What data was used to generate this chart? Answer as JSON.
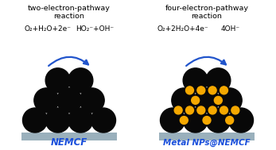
{
  "bg_color": "#ffffff",
  "left_title_line1": "two-electron-pathway",
  "left_title_line2": "reaction",
  "right_title_line1": "four-electron-pathway",
  "right_title_line2": "reaction",
  "left_eq_left": "O₂+H₂O+2e⁻",
  "left_eq_right": "HO₂⁻+OH⁻",
  "right_eq_left": "O₂+2H₂O+4e⁻",
  "right_eq_right": "4OH⁻",
  "left_label": "NEMCF",
  "right_label": "Metal NPs@NEMCF",
  "label_color": "#1a4fdb",
  "black_circle_color": "#080808",
  "gold_circle_color": "#f5a800",
  "arrow_color": "#2255cc",
  "substrate_color": "#9ab0bc",
  "fig_width": 3.47,
  "fig_height": 1.89,
  "dpi": 100
}
